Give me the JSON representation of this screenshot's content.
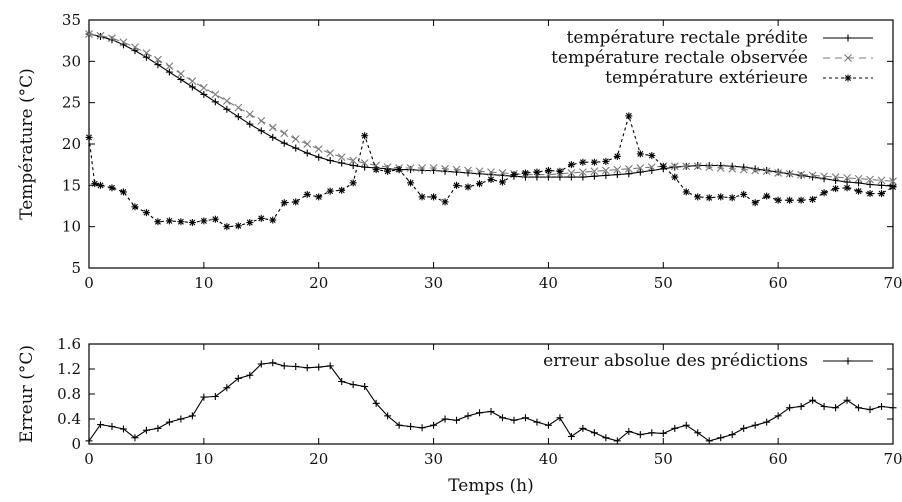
{
  "chart_data": [
    {
      "type": "line",
      "ylabel": "Température (°C)",
      "xlim": [
        0,
        70
      ],
      "ylim": [
        5,
        35
      ],
      "xticks": [
        0,
        10,
        20,
        30,
        40,
        50,
        60,
        70
      ],
      "yticks": [
        5,
        10,
        15,
        20,
        25,
        30,
        35
      ],
      "legend_position": "top-right",
      "grid": false,
      "series": [
        {
          "name": "température rectale prédite",
          "marker": "plus",
          "style": "solid",
          "color": "#000000",
          "x": [
            0,
            1,
            2,
            3,
            4,
            5,
            6,
            7,
            8,
            9,
            10,
            11,
            12,
            13,
            14,
            15,
            16,
            17,
            18,
            19,
            20,
            21,
            22,
            23,
            24,
            25,
            26,
            27,
            28,
            29,
            30,
            31,
            32,
            33,
            34,
            35,
            36,
            37,
            38,
            39,
            40,
            41,
            42,
            43,
            44,
            45,
            46,
            47,
            48,
            49,
            50,
            51,
            52,
            53,
            54,
            55,
            56,
            57,
            58,
            59,
            60,
            61,
            62,
            63,
            64,
            65,
            66,
            67,
            68,
            69,
            70
          ],
          "values": [
            33.3,
            33.0,
            32.6,
            32.0,
            31.3,
            30.5,
            29.6,
            28.7,
            27.8,
            26.9,
            26.0,
            25.1,
            24.2,
            23.3,
            22.4,
            21.6,
            20.8,
            20.1,
            19.5,
            18.9,
            18.4,
            18.0,
            17.7,
            17.4,
            17.2,
            17.1,
            17.0,
            16.9,
            16.9,
            16.8,
            16.8,
            16.7,
            16.6,
            16.5,
            16.4,
            16.3,
            16.2,
            16.1,
            16.0,
            16.0,
            16.0,
            16.0,
            16.0,
            16.0,
            16.1,
            16.2,
            16.3,
            16.4,
            16.6,
            16.8,
            17.0,
            17.2,
            17.3,
            17.4,
            17.4,
            17.4,
            17.3,
            17.2,
            17.0,
            16.8,
            16.6,
            16.4,
            16.2,
            16.0,
            15.8,
            15.6,
            15.4,
            15.3,
            15.1,
            15.0,
            14.9
          ]
        },
        {
          "name": "température rectale observée",
          "marker": "x",
          "style": "dashed",
          "color": "#7a7a7a",
          "x": [
            0,
            1,
            2,
            3,
            4,
            5,
            6,
            7,
            8,
            9,
            10,
            11,
            12,
            13,
            14,
            15,
            16,
            17,
            18,
            19,
            20,
            21,
            22,
            23,
            24,
            25,
            26,
            27,
            28,
            29,
            30,
            31,
            32,
            33,
            34,
            35,
            36,
            37,
            38,
            39,
            40,
            41,
            42,
            43,
            44,
            45,
            46,
            47,
            48,
            49,
            50,
            51,
            52,
            53,
            54,
            55,
            56,
            57,
            58,
            59,
            60,
            61,
            62,
            63,
            64,
            65,
            66,
            67,
            68,
            69,
            70
          ],
          "values": [
            33.3,
            33.1,
            32.8,
            32.3,
            31.7,
            31.0,
            30.2,
            29.4,
            28.5,
            27.6,
            26.8,
            26.0,
            25.2,
            24.4,
            23.6,
            22.8,
            22.0,
            21.3,
            20.6,
            20.0,
            19.4,
            18.9,
            18.4,
            18.0,
            17.7,
            17.4,
            17.2,
            17.1,
            17.1,
            17.1,
            17.1,
            17.0,
            16.9,
            16.8,
            16.7,
            16.6,
            16.5,
            16.4,
            16.3,
            16.3,
            16.3,
            16.4,
            16.5,
            16.6,
            16.7,
            16.8,
            16.9,
            17.0,
            17.1,
            17.2,
            17.3,
            17.3,
            17.3,
            17.3,
            17.2,
            17.1,
            17.0,
            16.9,
            16.8,
            16.7,
            16.5,
            16.4,
            16.3,
            16.2,
            16.1,
            16.0,
            15.9,
            15.8,
            15.7,
            15.6,
            15.5
          ]
        },
        {
          "name": "température extérieure",
          "marker": "star",
          "style": "dotted",
          "color": "#000000",
          "x": [
            0,
            0.5,
            1,
            2,
            3,
            4,
            5,
            6,
            7,
            8,
            9,
            10,
            11,
            12,
            13,
            14,
            15,
            16,
            17,
            18,
            19,
            20,
            21,
            22,
            23,
            24,
            25,
            26,
            27,
            28,
            29,
            30,
            31,
            32,
            33,
            34,
            35,
            36,
            37,
            38,
            39,
            40,
            41,
            42,
            43,
            44,
            45,
            46,
            47,
            48,
            49,
            50,
            51,
            52,
            53,
            54,
            55,
            56,
            57,
            58,
            59,
            60,
            61,
            62,
            63,
            64,
            65,
            66,
            67,
            68,
            69,
            70
          ],
          "values": [
            20.8,
            15.2,
            15.0,
            14.7,
            14.2,
            12.4,
            11.7,
            10.6,
            10.7,
            10.6,
            10.5,
            10.7,
            10.9,
            10.0,
            10.1,
            10.5,
            11.0,
            10.8,
            12.9,
            13.0,
            13.9,
            13.6,
            14.3,
            14.4,
            15.3,
            21.0,
            16.9,
            16.7,
            16.9,
            15.3,
            13.6,
            13.6,
            13.0,
            15.0,
            14.8,
            15.2,
            15.7,
            15.4,
            16.3,
            16.5,
            16.6,
            16.8,
            16.7,
            17.5,
            17.8,
            17.8,
            17.9,
            18.5,
            23.4,
            18.8,
            18.6,
            17.3,
            16.0,
            14.2,
            13.6,
            13.5,
            13.6,
            13.5,
            13.9,
            12.9,
            13.7,
            13.2,
            13.2,
            13.2,
            13.3,
            14.1,
            14.6,
            14.7,
            14.3,
            14.0,
            14.0,
            14.8
          ]
        }
      ]
    },
    {
      "type": "line",
      "xlabel": "Temps (h)",
      "ylabel": "Erreur (°C)",
      "xlim": [
        0,
        70
      ],
      "ylim": [
        0,
        1.6
      ],
      "xticks": [
        0,
        10,
        20,
        30,
        40,
        50,
        60,
        70
      ],
      "yticks": [
        "0",
        "0.4",
        "0.8",
        "1.2",
        "1.6"
      ],
      "legend_position": "top-right",
      "grid": false,
      "series": [
        {
          "name": "erreur absolue des prédictions",
          "marker": "plus",
          "style": "solid",
          "color": "#000000",
          "x": [
            0,
            1,
            2,
            3,
            4,
            5,
            6,
            7,
            8,
            9,
            10,
            11,
            12,
            13,
            14,
            15,
            16,
            17,
            18,
            19,
            20,
            21,
            22,
            23,
            24,
            25,
            26,
            27,
            28,
            29,
            30,
            31,
            32,
            33,
            34,
            35,
            36,
            37,
            38,
            39,
            40,
            41,
            42,
            43,
            44,
            45,
            46,
            47,
            48,
            49,
            50,
            51,
            52,
            53,
            54,
            55,
            56,
            57,
            58,
            59,
            60,
            61,
            62,
            63,
            64,
            65,
            66,
            67,
            68,
            69,
            70
          ],
          "values": [
            0.05,
            0.31,
            0.28,
            0.24,
            0.1,
            0.22,
            0.25,
            0.35,
            0.4,
            0.45,
            0.75,
            0.76,
            0.9,
            1.05,
            1.1,
            1.28,
            1.3,
            1.25,
            1.24,
            1.22,
            1.23,
            1.25,
            1.0,
            0.95,
            0.92,
            0.65,
            0.45,
            0.3,
            0.28,
            0.26,
            0.3,
            0.4,
            0.38,
            0.45,
            0.5,
            0.52,
            0.42,
            0.38,
            0.42,
            0.35,
            0.3,
            0.42,
            0.12,
            0.25,
            0.18,
            0.1,
            0.05,
            0.2,
            0.15,
            0.18,
            0.17,
            0.25,
            0.3,
            0.18,
            0.05,
            0.1,
            0.15,
            0.25,
            0.3,
            0.35,
            0.45,
            0.58,
            0.6,
            0.7,
            0.6,
            0.58,
            0.7,
            0.58,
            0.55,
            0.6,
            0.58
          ]
        }
      ]
    }
  ]
}
